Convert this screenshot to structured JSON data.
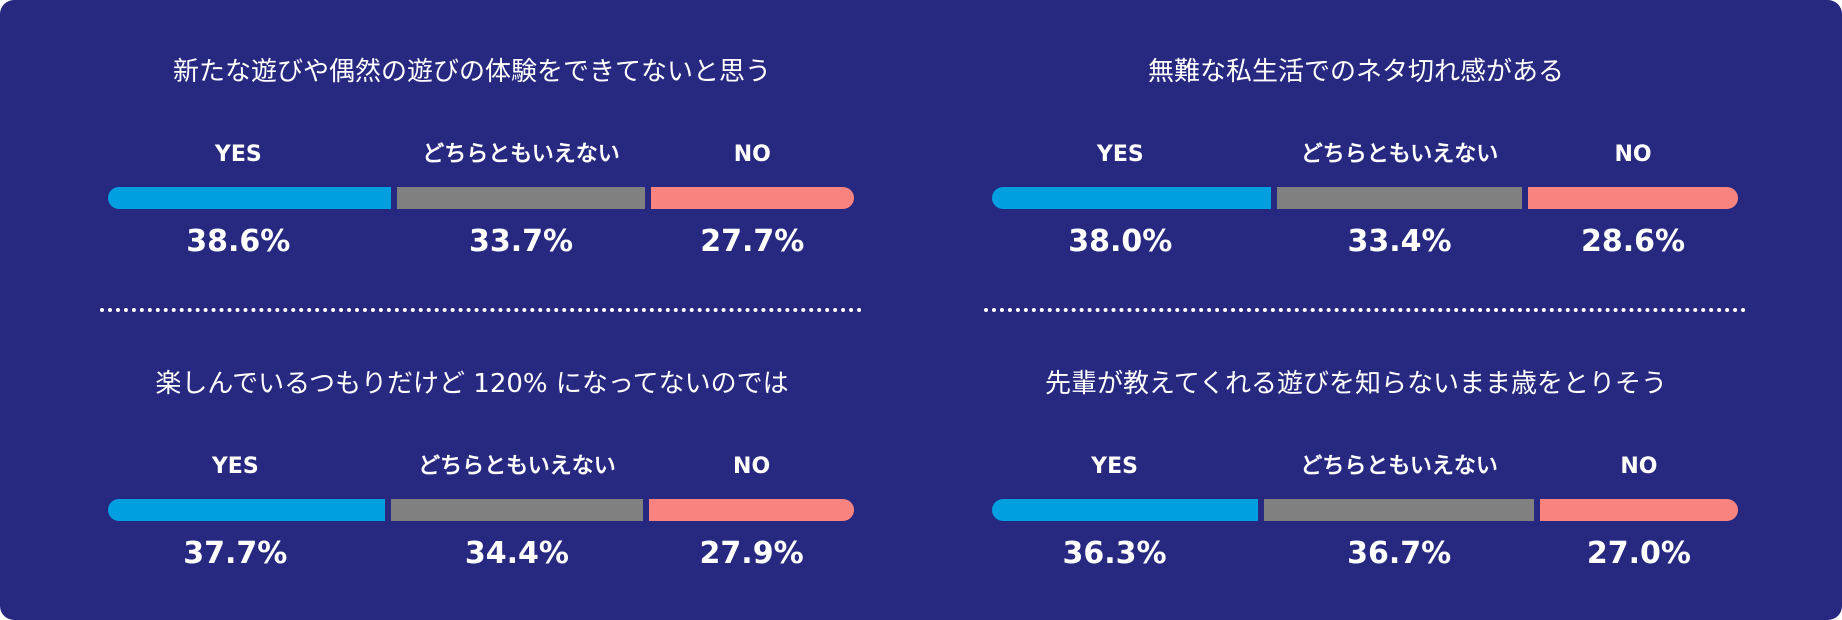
{
  "colors": {
    "background": "#272981",
    "yes": "#009FE0",
    "neutral": "#808080",
    "no": "#F8837F",
    "text": "#FFFFFF"
  },
  "chart_data": [
    {
      "type": "bar",
      "orientation": "horizontal-stacked-100",
      "title": "新たな遊びや偶然の遊びの体験をできてないと思う",
      "categories": [
        "YES",
        "どちらともいえない",
        "NO"
      ],
      "values": [
        38.6,
        33.7,
        27.7
      ],
      "value_labels": [
        "38.6%",
        "33.7%",
        "27.7%"
      ]
    },
    {
      "type": "bar",
      "orientation": "horizontal-stacked-100",
      "title": "無難な私生活でのネタ切れ感がある",
      "categories": [
        "YES",
        "どちらともいえない",
        "NO"
      ],
      "values": [
        38.0,
        33.4,
        28.6
      ],
      "value_labels": [
        "38.0%",
        "33.4%",
        "28.6%"
      ]
    },
    {
      "type": "bar",
      "orientation": "horizontal-stacked-100",
      "title": "楽しんでいるつもりだけど 120% になってないのでは",
      "categories": [
        "YES",
        "どちらともいえない",
        "NO"
      ],
      "values": [
        37.7,
        34.4,
        27.9
      ],
      "value_labels": [
        "37.7%",
        "34.4%",
        "27.9%"
      ]
    },
    {
      "type": "bar",
      "orientation": "horizontal-stacked-100",
      "title": "先輩が教えてくれる遊びを知らないまま歳をとりそう",
      "categories": [
        "YES",
        "どちらともいえない",
        "NO"
      ],
      "values": [
        36.3,
        36.7,
        27.0
      ],
      "value_labels": [
        "36.3%",
        "36.7%",
        "27.0%"
      ]
    }
  ]
}
